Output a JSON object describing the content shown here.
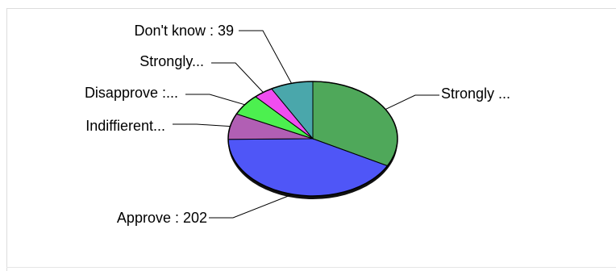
{
  "chart_data": {
    "type": "pie",
    "slices": [
      {
        "label": "Strongly ...",
        "value": 158,
        "color": "#4fa85a"
      },
      {
        "label": "Approve : 202",
        "value": 202,
        "color": "#4f56f7"
      },
      {
        "label": "Indiffierent...",
        "value": 35,
        "color": "#b15fb4"
      },
      {
        "label": "Disapprove :...",
        "value": 29,
        "color": "#4cf04f"
      },
      {
        "label": "Strongly...",
        "value": 18,
        "color": "#f04df0"
      },
      {
        "label": "Don't know : 39",
        "value": 39,
        "color": "#4aa7ab"
      }
    ],
    "title": "",
    "legend": "none"
  }
}
